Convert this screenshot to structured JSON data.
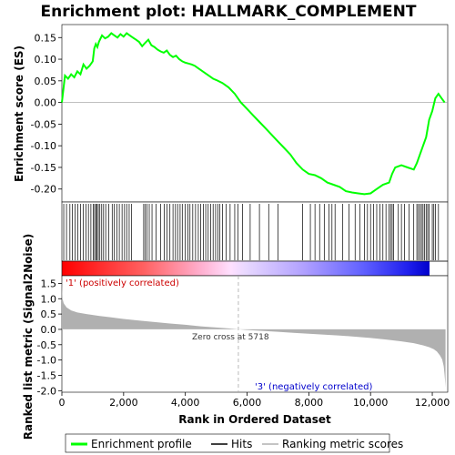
{
  "chart_data": {
    "type": "line",
    "title": "Enrichment plot: HALLMARK_COMPLEMENT",
    "ylabel_top": "Enrichment score (ES)",
    "ylabel_bottom": "Ranked list metric (Signal2Noise)",
    "xlabel": "Rank in Ordered Dataset",
    "x_range": [
      0,
      12500
    ],
    "x_ticks": [
      "0",
      "2,000",
      "4,000",
      "6,000",
      "8,000",
      "10,000",
      "12,000"
    ],
    "x_tick_values": [
      0,
      2000,
      4000,
      6000,
      8000,
      10000,
      12000
    ],
    "es_ylim": [
      -0.23,
      0.18
    ],
    "es_ticks": [
      "0.15",
      "0.10",
      "0.05",
      "0.00",
      "-0.05",
      "-0.10",
      "-0.15",
      "-0.20"
    ],
    "es_tick_values": [
      0.15,
      0.1,
      0.05,
      0.0,
      -0.05,
      -0.1,
      -0.15,
      -0.2
    ],
    "metric_ylim": [
      -2.05,
      1.75
    ],
    "metric_ticks": [
      "1.5",
      "1.0",
      "0.5",
      "0.0",
      "-0.5",
      "-1.0",
      "-1.5",
      "-2.0"
    ],
    "metric_tick_values": [
      1.5,
      1.0,
      0.5,
      0.0,
      -0.5,
      -1.0,
      -1.5,
      -2.0
    ],
    "zero_cross_rank": 5718,
    "zero_cross_label": "Zero cross at 5718",
    "positive_label": "'1' (positively correlated)",
    "negative_label": "'3' (negatively correlated)",
    "series": [
      {
        "name": "Enrichment profile",
        "color": "#00ff00",
        "x": [
          0,
          100,
          200,
          300,
          400,
          500,
          600,
          700,
          800,
          900,
          1000,
          1050,
          1100,
          1150,
          1200,
          1300,
          1400,
          1500,
          1600,
          1700,
          1800,
          1900,
          2000,
          2100,
          2200,
          2300,
          2400,
          2500,
          2600,
          2700,
          2800,
          2900,
          3000,
          3100,
          3200,
          3300,
          3400,
          3500,
          3600,
          3700,
          3800,
          3900,
          4000,
          4100,
          4200,
          4300,
          4400,
          4500,
          4600,
          4700,
          4800,
          4900,
          5000,
          5200,
          5400,
          5600,
          5800,
          6000,
          6200,
          6400,
          6600,
          6800,
          7000,
          7200,
          7400,
          7600,
          7800,
          8000,
          8200,
          8400,
          8600,
          8800,
          9000,
          9200,
          9400,
          9600,
          9800,
          10000,
          10200,
          10400,
          10600,
          10700,
          10800,
          11000,
          11200,
          11400,
          11500,
          11600,
          11700,
          11800,
          11900,
          12000,
          12100,
          12200,
          12300,
          12400
        ],
        "values": [
          0.0,
          0.062,
          0.055,
          0.065,
          0.058,
          0.072,
          0.065,
          0.088,
          0.078,
          0.085,
          0.095,
          0.125,
          0.135,
          0.128,
          0.14,
          0.155,
          0.148,
          0.152,
          0.16,
          0.155,
          0.15,
          0.158,
          0.152,
          0.16,
          0.155,
          0.15,
          0.145,
          0.14,
          0.13,
          0.138,
          0.145,
          0.132,
          0.128,
          0.122,
          0.118,
          0.115,
          0.12,
          0.11,
          0.105,
          0.108,
          0.1,
          0.095,
          0.092,
          0.09,
          0.088,
          0.085,
          0.08,
          0.075,
          0.07,
          0.065,
          0.06,
          0.055,
          0.052,
          0.045,
          0.035,
          0.02,
          0.0,
          -0.015,
          -0.03,
          -0.045,
          -0.06,
          -0.075,
          -0.09,
          -0.105,
          -0.12,
          -0.14,
          -0.155,
          -0.165,
          -0.168,
          -0.175,
          -0.185,
          -0.19,
          -0.195,
          -0.205,
          -0.208,
          -0.21,
          -0.212,
          -0.21,
          -0.2,
          -0.19,
          -0.185,
          -0.165,
          -0.15,
          -0.145,
          -0.15,
          -0.155,
          -0.14,
          -0.12,
          -0.1,
          -0.08,
          -0.04,
          -0.02,
          0.01,
          0.02,
          0.01,
          0.0
        ]
      },
      {
        "name": "Hits",
        "color": "#000000",
        "x": [
          60,
          150,
          260,
          340,
          430,
          520,
          600,
          690,
          780,
          860,
          940,
          1020,
          1060,
          1100,
          1140,
          1180,
          1230,
          1290,
          1350,
          1420,
          1520,
          1630,
          1700,
          1780,
          1860,
          1950,
          2030,
          2100,
          2180,
          2260,
          2650,
          2700,
          2760,
          2830,
          2920,
          3050,
          3200,
          3320,
          3410,
          3500,
          3600,
          3680,
          3750,
          3830,
          3900,
          3990,
          4080,
          4150,
          4240,
          4330,
          4420,
          4500,
          4580,
          4660,
          4740,
          4820,
          4900,
          4980,
          5050,
          5120,
          5200,
          5320,
          5450,
          5600,
          5700,
          5850,
          6100,
          6400,
          6700,
          7000,
          7800,
          8050,
          8200,
          8350,
          8500,
          8650,
          8750,
          8850,
          9100,
          9300,
          9500,
          9650,
          9800,
          9900,
          10000,
          10100,
          10200,
          10300,
          10400,
          10500,
          10600,
          10650,
          10700,
          10750,
          10900,
          11000,
          11100,
          11250,
          11400,
          11500,
          11550,
          11600,
          11650,
          11700,
          11750,
          11800,
          11850,
          11900,
          12000,
          12050,
          12100,
          12200
        ]
      },
      {
        "name": "Ranking metric scores",
        "color": "#b0b0b0",
        "x": [
          0,
          20,
          60,
          150,
          300,
          500,
          800,
          1200,
          1600,
          2000,
          2500,
          3000,
          3500,
          4000,
          4500,
          5000,
          5400,
          5718,
          6000,
          6500,
          7000,
          7500,
          8000,
          8500,
          9000,
          9500,
          10000,
          10500,
          11000,
          11400,
          11700,
          11900,
          12050,
          12150,
          12250,
          12320,
          12370,
          12400,
          12420,
          12430
        ],
        "values": [
          1.6,
          1.0,
          0.85,
          0.72,
          0.62,
          0.55,
          0.5,
          0.44,
          0.39,
          0.34,
          0.29,
          0.24,
          0.19,
          0.15,
          0.1,
          0.06,
          0.03,
          0.0,
          -0.02,
          -0.05,
          -0.08,
          -0.11,
          -0.14,
          -0.17,
          -0.2,
          -0.24,
          -0.28,
          -0.33,
          -0.39,
          -0.45,
          -0.52,
          -0.58,
          -0.65,
          -0.72,
          -0.85,
          -0.98,
          -1.2,
          -1.5,
          -1.75,
          -1.9
        ]
      }
    ],
    "legend": [
      "Enrichment profile",
      "Hits",
      "Ranking metric scores"
    ],
    "legend_placement": "bottom"
  }
}
